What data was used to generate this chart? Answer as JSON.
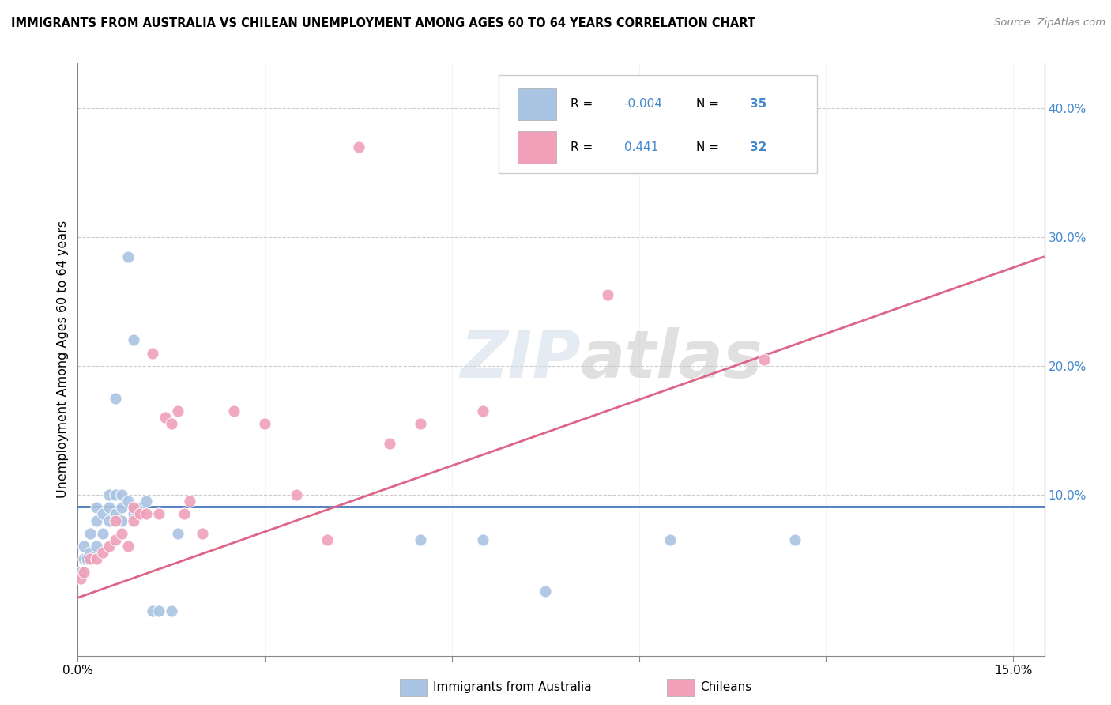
{
  "title": "IMMIGRANTS FROM AUSTRALIA VS CHILEAN UNEMPLOYMENT AMONG AGES 60 TO 64 YEARS CORRELATION CHART",
  "source": "Source: ZipAtlas.com",
  "ylabel": "Unemployment Among Ages 60 to 64 years",
  "xlim": [
    0.0,
    0.155
  ],
  "ylim": [
    -0.025,
    0.435
  ],
  "xticks": [
    0.0,
    0.03,
    0.06,
    0.09,
    0.12,
    0.15
  ],
  "xtick_labels": [
    "0.0%",
    "",
    "",
    "",
    "",
    "15.0%"
  ],
  "yticks_right": [
    0.0,
    0.1,
    0.2,
    0.3,
    0.4
  ],
  "ytick_labels_right": [
    "",
    "10.0%",
    "20.0%",
    "30.0%",
    "40.0%"
  ],
  "color_blue": "#aac4e4",
  "color_pink": "#f0a0b8",
  "line_blue": "#4477bb",
  "line_pink": "#dd6688",
  "grid_color": "#cccccc",
  "watermark_zip": "ZIP",
  "watermark_atlas": "atlas",
  "blue_scatter_x": [
    0.0005,
    0.001,
    0.001,
    0.0015,
    0.002,
    0.002,
    0.003,
    0.003,
    0.003,
    0.004,
    0.004,
    0.005,
    0.005,
    0.005,
    0.006,
    0.006,
    0.006,
    0.007,
    0.007,
    0.007,
    0.008,
    0.008,
    0.009,
    0.009,
    0.01,
    0.011,
    0.012,
    0.013,
    0.015,
    0.016,
    0.065,
    0.075,
    0.095,
    0.115,
    0.055
  ],
  "blue_scatter_y": [
    0.04,
    0.05,
    0.06,
    0.05,
    0.055,
    0.07,
    0.06,
    0.08,
    0.09,
    0.07,
    0.085,
    0.08,
    0.09,
    0.1,
    0.085,
    0.1,
    0.175,
    0.08,
    0.09,
    0.1,
    0.285,
    0.095,
    0.085,
    0.22,
    0.09,
    0.095,
    0.01,
    0.01,
    0.01,
    0.07,
    0.065,
    0.025,
    0.065,
    0.065,
    0.065
  ],
  "pink_scatter_x": [
    0.0005,
    0.001,
    0.002,
    0.003,
    0.004,
    0.005,
    0.006,
    0.006,
    0.007,
    0.008,
    0.009,
    0.009,
    0.01,
    0.011,
    0.012,
    0.013,
    0.014,
    0.015,
    0.016,
    0.017,
    0.018,
    0.02,
    0.025,
    0.03,
    0.035,
    0.04,
    0.045,
    0.05,
    0.055,
    0.065,
    0.085,
    0.11
  ],
  "pink_scatter_y": [
    0.035,
    0.04,
    0.05,
    0.05,
    0.055,
    0.06,
    0.065,
    0.08,
    0.07,
    0.06,
    0.08,
    0.09,
    0.085,
    0.085,
    0.21,
    0.085,
    0.16,
    0.155,
    0.165,
    0.085,
    0.095,
    0.07,
    0.165,
    0.155,
    0.1,
    0.065,
    0.37,
    0.14,
    0.155,
    0.165,
    0.255,
    0.205
  ],
  "blue_line_x": [
    0.0,
    0.155
  ],
  "blue_line_y": [
    0.091,
    0.091
  ],
  "pink_line_x": [
    0.0,
    0.155
  ],
  "pink_line_y": [
    0.02,
    0.285
  ],
  "legend_items": [
    {
      "r": "-0.004",
      "n": "35"
    },
    {
      "r": "0.441",
      "n": "32"
    }
  ]
}
